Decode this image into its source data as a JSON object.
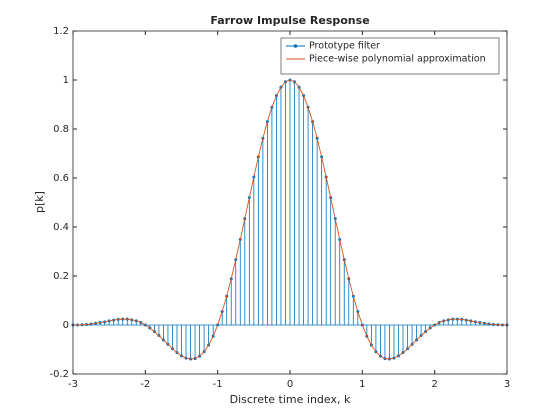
{
  "chart_data": {
    "type": "stem",
    "title": "Farrow Impulse Response",
    "xlabel": "Discrete time index, k",
    "ylabel": "p[k]",
    "x": [
      -3,
      -2.9375,
      -2.875,
      -2.8125,
      -2.75,
      -2.6875,
      -2.625,
      -2.5625,
      -2.5,
      -2.4375,
      -2.375,
      -2.3125,
      -2.25,
      -2.1875,
      -2.125,
      -2.0625,
      -2,
      -1.9375,
      -1.875,
      -1.8125,
      -1.75,
      -1.6875,
      -1.625,
      -1.5625,
      -1.5,
      -1.4375,
      -1.375,
      -1.3125,
      -1.25,
      -1.1875,
      -1.125,
      -1.0625,
      -1,
      -0.9375,
      -0.875,
      -0.8125,
      -0.75,
      -0.6875,
      -0.625,
      -0.5625,
      -0.5,
      -0.4375,
      -0.375,
      -0.3125,
      -0.25,
      -0.1875,
      -0.125,
      -0.0625,
      0,
      0.0625,
      0.125,
      0.1875,
      0.25,
      0.3125,
      0.375,
      0.4375,
      0.5,
      0.5625,
      0.625,
      0.6875,
      0.75,
      0.8125,
      0.875,
      0.9375,
      1,
      1.0625,
      1.125,
      1.1875,
      1.25,
      1.3125,
      1.375,
      1.4375,
      1.5,
      1.5625,
      1.625,
      1.6875,
      1.75,
      1.8125,
      1.875,
      1.9375,
      2,
      2.0625,
      2.125,
      2.1875,
      2.25,
      2.3125,
      2.375,
      2.4375,
      2.5,
      2.5625,
      2.625,
      2.6875,
      2.75,
      2.8125,
      2.875,
      2.9375,
      3
    ],
    "series": [
      {
        "name": "Prototype filter",
        "style": "stem",
        "color": "#0072bd",
        "values": [
          0,
          0,
          0.001,
          0.002,
          0.004,
          0.007,
          0.01,
          0.013,
          0.017,
          0.02,
          0.023,
          0.024,
          0.024,
          0.021,
          0.017,
          0.01,
          0,
          -0.012,
          -0.027,
          -0.043,
          -0.061,
          -0.079,
          -0.097,
          -0.113,
          -0.126,
          -0.135,
          -0.139,
          -0.137,
          -0.127,
          -0.109,
          -0.082,
          -0.046,
          0,
          0.055,
          0.118,
          0.189,
          0.267,
          0.349,
          0.434,
          0.52,
          0.604,
          0.686,
          0.762,
          0.83,
          0.889,
          0.936,
          0.971,
          0.993,
          1,
          0.993,
          0.971,
          0.936,
          0.889,
          0.83,
          0.762,
          0.686,
          0.604,
          0.52,
          0.434,
          0.349,
          0.267,
          0.189,
          0.118,
          0.055,
          0,
          -0.046,
          -0.082,
          -0.109,
          -0.127,
          -0.137,
          -0.139,
          -0.135,
          -0.126,
          -0.113,
          -0.097,
          -0.079,
          -0.061,
          -0.043,
          -0.027,
          -0.012,
          0,
          0.01,
          0.017,
          0.021,
          0.024,
          0.024,
          0.023,
          0.02,
          0.017,
          0.013,
          0.01,
          0.007,
          0.004,
          0.002,
          0.001,
          0,
          0
        ]
      },
      {
        "name": "Piece-wise polynomial approximation",
        "style": "line",
        "color": "#d95319",
        "values": [
          0,
          0,
          0.001,
          0.002,
          0.004,
          0.007,
          0.01,
          0.013,
          0.017,
          0.02,
          0.023,
          0.024,
          0.024,
          0.021,
          0.017,
          0.01,
          0,
          -0.012,
          -0.027,
          -0.043,
          -0.061,
          -0.079,
          -0.097,
          -0.113,
          -0.126,
          -0.135,
          -0.139,
          -0.137,
          -0.127,
          -0.109,
          -0.082,
          -0.046,
          0,
          0.055,
          0.118,
          0.189,
          0.267,
          0.349,
          0.434,
          0.52,
          0.604,
          0.686,
          0.762,
          0.83,
          0.889,
          0.936,
          0.971,
          0.993,
          1,
          0.993,
          0.971,
          0.936,
          0.889,
          0.83,
          0.762,
          0.686,
          0.604,
          0.52,
          0.434,
          0.349,
          0.267,
          0.189,
          0.118,
          0.055,
          0,
          -0.046,
          -0.082,
          -0.109,
          -0.127,
          -0.137,
          -0.139,
          -0.135,
          -0.126,
          -0.113,
          -0.097,
          -0.079,
          -0.061,
          -0.043,
          -0.027,
          -0.012,
          0,
          0.01,
          0.017,
          0.021,
          0.024,
          0.024,
          0.023,
          0.02,
          0.017,
          0.013,
          0.01,
          0.007,
          0.004,
          0.002,
          0.001,
          0,
          0
        ]
      }
    ],
    "xlim": [
      -3,
      3
    ],
    "xticks": [
      -3,
      -2,
      -1,
      0,
      1,
      2,
      3
    ],
    "ylim": [
      -0.2,
      1.2
    ],
    "yticks": [
      -0.2,
      0,
      0.2,
      0.4,
      0.6,
      0.8,
      1,
      1.2
    ],
    "legend": "northeast"
  }
}
